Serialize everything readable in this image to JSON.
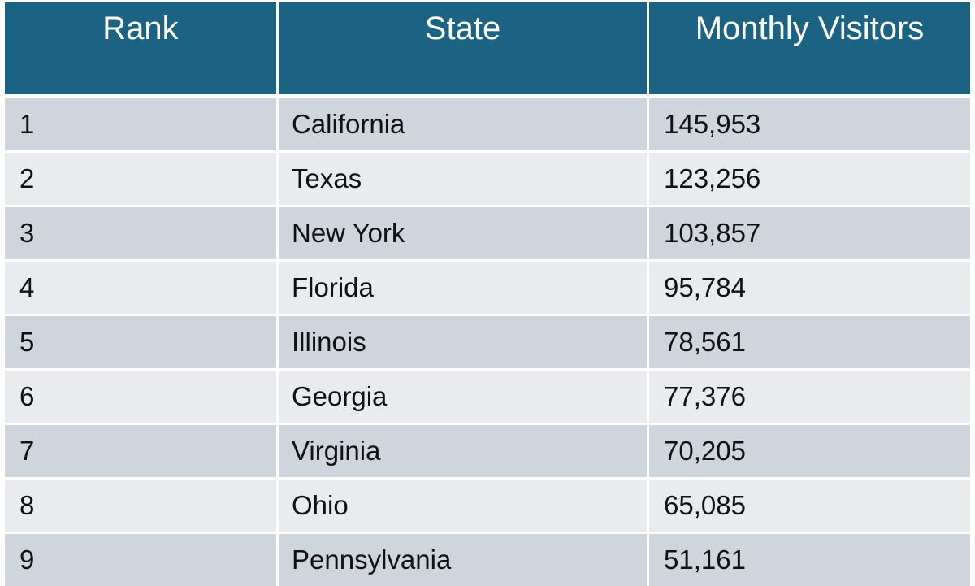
{
  "table": {
    "headers": [
      "Rank",
      "State",
      "Monthly Visitors"
    ],
    "rows": [
      [
        "1",
        "California",
        "145,953"
      ],
      [
        "2",
        "Texas",
        "123,256"
      ],
      [
        "3",
        "New York",
        "103,857"
      ],
      [
        "4",
        "Florida",
        "95,784"
      ],
      [
        "5",
        "Illinois",
        "78,561"
      ],
      [
        "6",
        "Georgia",
        "77,376"
      ],
      [
        "7",
        "Virginia",
        "70,205"
      ],
      [
        "8",
        "Ohio",
        "65,085"
      ],
      [
        "9",
        "Pennsylvania",
        "51,161"
      ]
    ]
  },
  "colors": {
    "header_bg": "#1b6283",
    "header_text": "#ffffff",
    "row_band_dark": "#cfd5dd",
    "row_band_light": "#e9ebef"
  }
}
